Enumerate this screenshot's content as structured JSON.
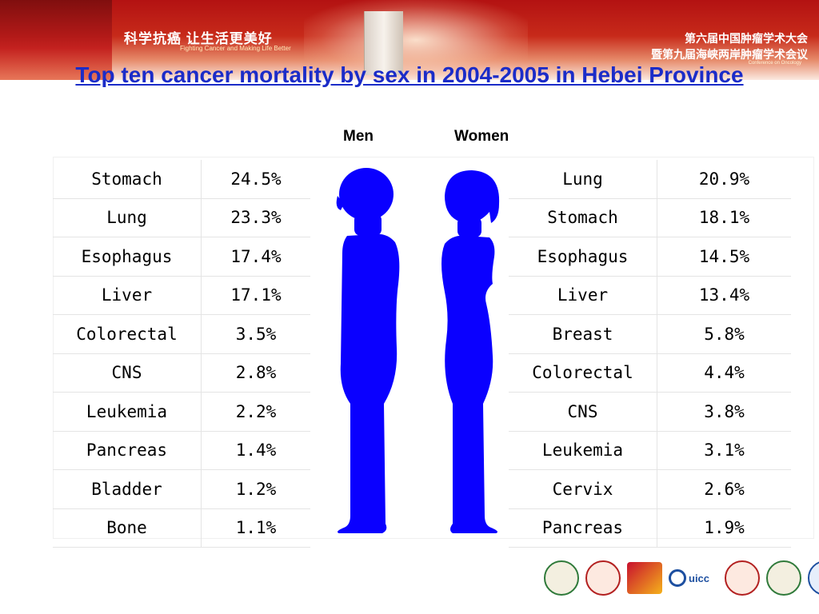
{
  "banner": {
    "slogan": "科学抗癌 让生活更美好",
    "slogan_en": "Fighting Cancer and Making Life Better",
    "conference_line1": "第六届中国肿瘤学术大会",
    "conference_line2": "暨第九届海峡两岸肿瘤学术会议",
    "conference_en": "Conference on Oncology"
  },
  "title": "Top ten cancer mortality by sex in 2004-2005 in Hebei Province",
  "headers": {
    "men": "Men",
    "women": "Women"
  },
  "men": [
    {
      "cancer": "Stomach",
      "rate": "24.5%"
    },
    {
      "cancer": "Lung",
      "rate": "23.3%"
    },
    {
      "cancer": "Esophagus",
      "rate": "17.4%"
    },
    {
      "cancer": "Liver",
      "rate": "17.1%"
    },
    {
      "cancer": "Colorectal",
      "rate": "3.5%"
    },
    {
      "cancer": "CNS",
      "rate": "2.8%"
    },
    {
      "cancer": "Leukemia",
      "rate": "2.2%"
    },
    {
      "cancer": "Pancreas",
      "rate": "1.4%"
    },
    {
      "cancer": "Bladder",
      "rate": "1.2%"
    },
    {
      "cancer": "Bone",
      "rate": "1.1%"
    }
  ],
  "women": [
    {
      "cancer": "Lung",
      "rate": "20.9%"
    },
    {
      "cancer": "Stomach",
      "rate": "18.1%"
    },
    {
      "cancer": "Esophagus",
      "rate": "14.5%"
    },
    {
      "cancer": "Liver",
      "rate": "13.4%"
    },
    {
      "cancer": "Breast",
      "rate": "5.8%"
    },
    {
      "cancer": "Colorectal",
      "rate": "4.4%"
    },
    {
      "cancer": "CNS",
      "rate": "3.8%"
    },
    {
      "cancer": "Leukemia",
      "rate": "3.1%"
    },
    {
      "cancer": "Cervix",
      "rate": "2.6%"
    },
    {
      "cancer": "Pancreas",
      "rate": "1.9%"
    }
  ],
  "logos": {
    "uicc_label": "uicc"
  },
  "colors": {
    "title": "#1b2cc8",
    "silhouette": "#0a00ff",
    "banner": "#c11b1b"
  }
}
